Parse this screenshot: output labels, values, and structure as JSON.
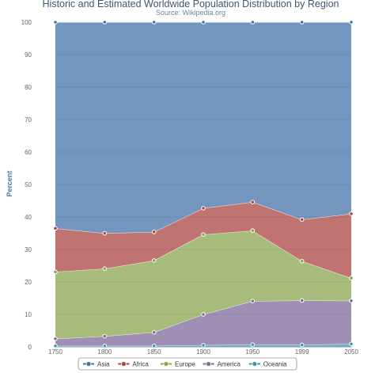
{
  "chart_data": {
    "type": "area",
    "stacking": "percent",
    "title": "Historic and Estimated Worldwide Population Distribution by Region",
    "subtitle": "Source: Wikipedia.org",
    "ylabel": "Percent",
    "xlabel": "",
    "x": [
      "1750",
      "1800",
      "1850",
      "1900",
      "1950",
      "1999",
      "2050"
    ],
    "ylim": [
      0,
      100
    ],
    "yticks": [
      0,
      10,
      20,
      30,
      40,
      50,
      60,
      70,
      80,
      90,
      100
    ],
    "grid": true,
    "legend_position": "bottom",
    "series": [
      {
        "name": "Asia",
        "color": "#4572a7",
        "values": [
          63.5,
          65.0,
          64.6,
          57.3,
          55.4,
          60.8,
          59.0
        ]
      },
      {
        "name": "Africa",
        "color": "#aa4643",
        "values": [
          13.4,
          10.9,
          8.8,
          8.1,
          8.8,
          12.8,
          19.8
        ]
      },
      {
        "name": "Europe",
        "color": "#89a54e",
        "values": [
          20.6,
          20.8,
          22.1,
          24.6,
          21.7,
          12.1,
          7.0
        ]
      },
      {
        "name": "America",
        "color": "#80699b",
        "values": [
          2.2,
          3.0,
          4.2,
          9.5,
          13.4,
          13.7,
          13.3
        ]
      },
      {
        "name": "Oceania",
        "color": "#3d96ae",
        "values": [
          0.3,
          0.3,
          0.3,
          0.5,
          0.7,
          0.6,
          0.9
        ]
      }
    ]
  }
}
